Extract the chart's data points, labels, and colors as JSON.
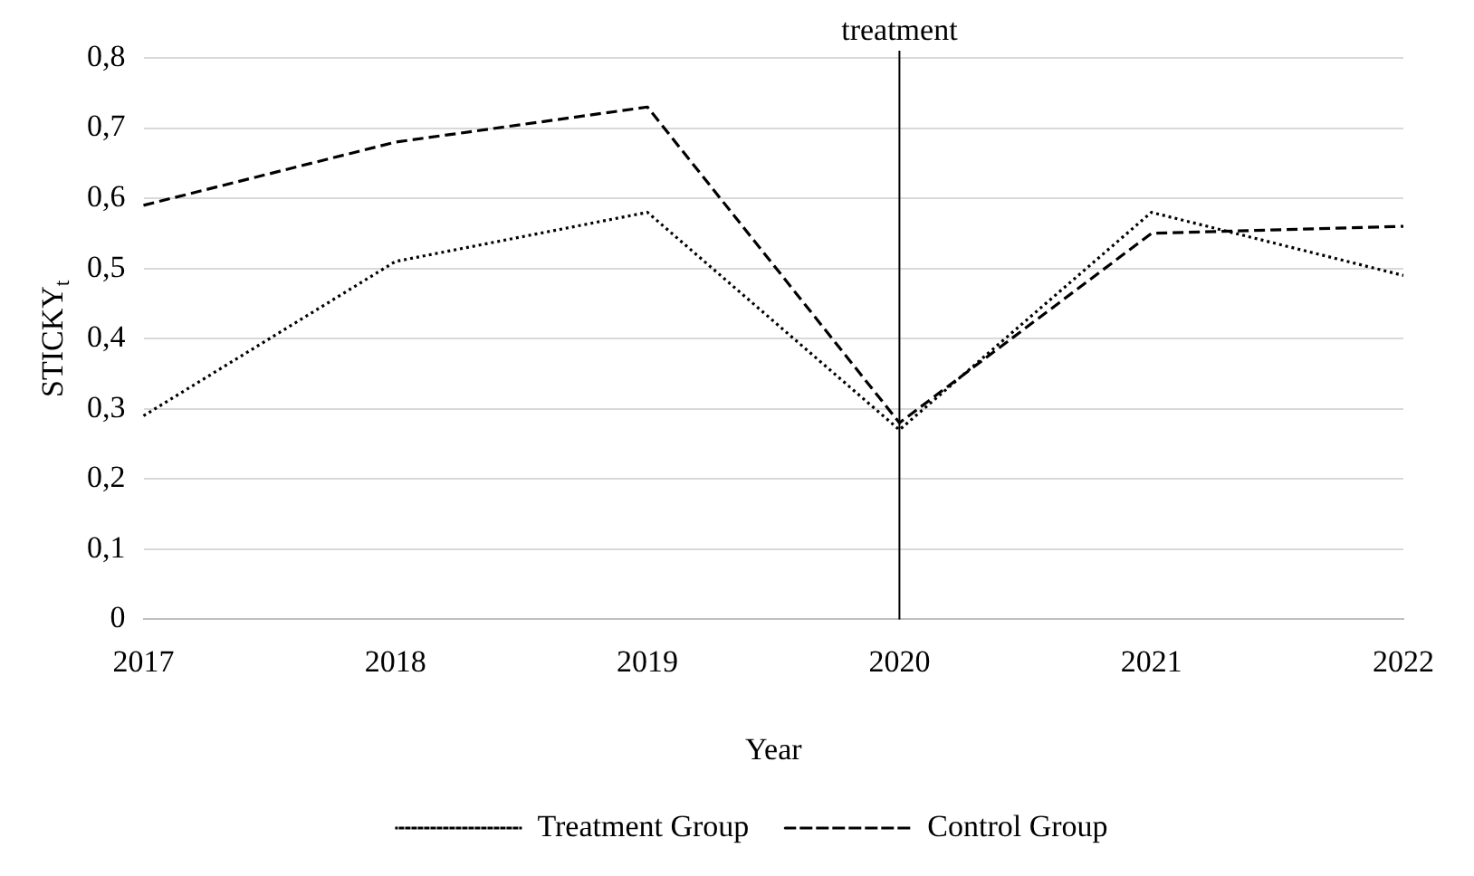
{
  "chart_data": {
    "type": "line",
    "xlabel": "Year",
    "ylabel": "STICKY$_{t}$",
    "categories": [
      "2017",
      "2018",
      "2019",
      "2020",
      "2021",
      "2022"
    ],
    "series": [
      {
        "name": "Treatment Group",
        "color": "#000000",
        "line_style": "dotted",
        "values": [
          0.29,
          0.51,
          0.58,
          0.27,
          0.58,
          0.49
        ]
      },
      {
        "name": "Control Group",
        "color": "#000000",
        "line_style": "dashed",
        "values": [
          0.59,
          0.68,
          0.73,
          0.28,
          0.55,
          0.56
        ]
      }
    ],
    "ylim": [
      0,
      0.8
    ],
    "yticks": [
      0,
      {
        "value": 0.1,
        "label": "0,1"
      },
      {
        "value": 0.2,
        "label": "0,2"
      },
      {
        "value": 0.3,
        "label": "0,3"
      },
      {
        "value": 0.4,
        "label": "0,4"
      },
      {
        "value": 0.5,
        "label": "0,5"
      },
      {
        "value": 0.6,
        "label": "0,6"
      },
      {
        "value": 0.7,
        "label": "0,7"
      },
      {
        "value": 0.8,
        "label": "0,8"
      }
    ],
    "ref_lines": [
      {
        "axis": "x",
        "value": "2020",
        "label": "treatment",
        "color": "#000000"
      }
    ],
    "grid": "y",
    "legend": "bottom",
    "marker": "none"
  }
}
